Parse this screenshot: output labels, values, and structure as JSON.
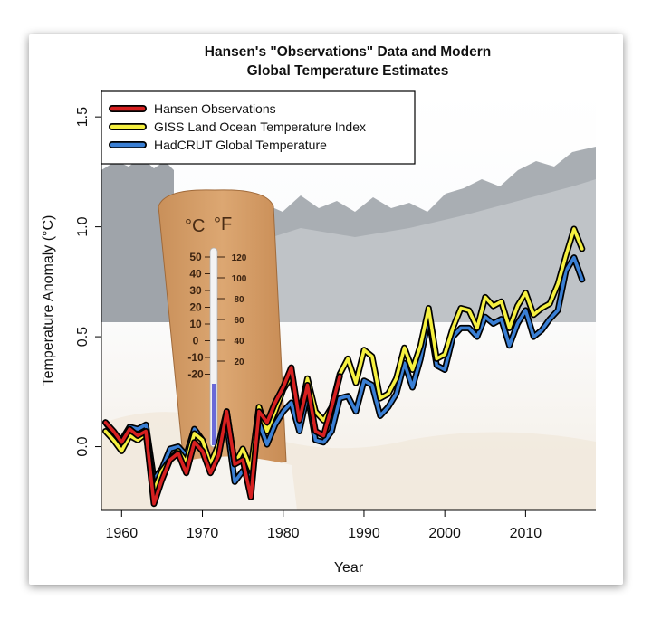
{
  "chart_data": {
    "type": "line",
    "title_line1": "Hansen's \"Observations\" Data and Modern",
    "title_line2": "Global Temperature Estimates",
    "xlabel": "Year",
    "ylabel": "Temperature Anomaly (°C)",
    "xlim": [
      1957.5,
      2018.7
    ],
    "ylim": [
      -0.29,
      1.62
    ],
    "xticks": [
      1960,
      1970,
      1980,
      1990,
      2000,
      2010
    ],
    "yticks": [
      0.0,
      0.5,
      1.0,
      1.5
    ],
    "ytick_labels": [
      "0.0",
      "0.5",
      "1.0",
      "1.5"
    ],
    "grid": false,
    "legend_position": "top-left",
    "series": [
      {
        "name": "Hansen Observations",
        "color": "#d62020",
        "x": [
          1958,
          1959,
          1960,
          1961,
          1962,
          1963,
          1964,
          1965,
          1966,
          1967,
          1968,
          1969,
          1970,
          1971,
          1972,
          1973,
          1974,
          1975,
          1976,
          1977,
          1978,
          1979,
          1980,
          1981,
          1982,
          1983,
          1984,
          1985,
          1986,
          1987
        ],
        "y": [
          0.11,
          0.07,
          0.02,
          0.08,
          0.05,
          0.07,
          -0.26,
          -0.15,
          -0.06,
          -0.03,
          -0.12,
          0.02,
          -0.02,
          -0.12,
          -0.04,
          0.16,
          -0.08,
          -0.06,
          -0.23,
          0.16,
          0.11,
          0.2,
          0.27,
          0.36,
          0.12,
          0.28,
          0.07,
          0.05,
          0.18,
          0.32
        ]
      },
      {
        "name": "GISS Land Ocean Temperature Index",
        "color": "#f5f040",
        "x": [
          1958,
          1959,
          1960,
          1961,
          1962,
          1963,
          1964,
          1965,
          1966,
          1967,
          1968,
          1969,
          1970,
          1971,
          1972,
          1973,
          1974,
          1975,
          1976,
          1977,
          1978,
          1979,
          1980,
          1981,
          1982,
          1983,
          1984,
          1985,
          1986,
          1987,
          1988,
          1989,
          1990,
          1991,
          1992,
          1993,
          1994,
          1995,
          1996,
          1997,
          1998,
          1999,
          2000,
          2001,
          2002,
          2003,
          2004,
          2005,
          2006,
          2007,
          2008,
          2009,
          2010,
          2011,
          2012,
          2013,
          2014,
          2015,
          2016,
          2017
        ],
        "y": [
          0.07,
          0.03,
          -0.02,
          0.05,
          0.03,
          0.06,
          -0.2,
          -0.11,
          -0.06,
          -0.02,
          -0.07,
          0.06,
          0.03,
          -0.08,
          0.01,
          0.16,
          -0.08,
          -0.01,
          -0.1,
          0.18,
          0.07,
          0.16,
          0.26,
          0.32,
          0.14,
          0.31,
          0.16,
          0.12,
          0.18,
          0.33,
          0.4,
          0.29,
          0.44,
          0.41,
          0.22,
          0.24,
          0.31,
          0.45,
          0.35,
          0.46,
          0.63,
          0.4,
          0.42,
          0.54,
          0.63,
          0.62,
          0.54,
          0.68,
          0.64,
          0.66,
          0.54,
          0.64,
          0.7,
          0.6,
          0.63,
          0.65,
          0.74,
          0.87,
          0.99,
          0.9
        ]
      },
      {
        "name": "HadCRUT Global Temperature",
        "color": "#3a7fd4",
        "x": [
          1958,
          1959,
          1960,
          1961,
          1962,
          1963,
          1964,
          1965,
          1966,
          1967,
          1968,
          1969,
          1970,
          1971,
          1972,
          1973,
          1974,
          1975,
          1976,
          1977,
          1978,
          1979,
          1980,
          1981,
          1982,
          1983,
          1984,
          1985,
          1986,
          1987,
          1988,
          1989,
          1990,
          1991,
          1992,
          1993,
          1994,
          1995,
          1996,
          1997,
          1998,
          1999,
          2000,
          2001,
          2002,
          2003,
          2004,
          2005,
          2006,
          2007,
          2008,
          2009,
          2010,
          2011,
          2012,
          2013,
          2014,
          2015,
          2016,
          2017
        ],
        "y": [
          0.11,
          0.06,
          0.03,
          0.09,
          0.08,
          0.1,
          -0.15,
          -0.1,
          -0.01,
          0.0,
          -0.04,
          0.08,
          0.03,
          -0.1,
          0.0,
          0.11,
          -0.16,
          -0.11,
          -0.14,
          0.11,
          0.01,
          0.1,
          0.16,
          0.2,
          0.07,
          0.24,
          0.03,
          0.02,
          0.07,
          0.22,
          0.23,
          0.16,
          0.3,
          0.28,
          0.14,
          0.18,
          0.24,
          0.38,
          0.27,
          0.4,
          0.59,
          0.37,
          0.35,
          0.5,
          0.54,
          0.54,
          0.5,
          0.59,
          0.56,
          0.58,
          0.46,
          0.56,
          0.62,
          0.5,
          0.53,
          0.58,
          0.62,
          0.8,
          0.86,
          0.76
        ]
      }
    ]
  },
  "photo": {
    "thermometer_unit_c": "°C",
    "thermometer_unit_f": "°F",
    "celsius_scale": [
      "50",
      "40",
      "30",
      "20",
      "10",
      "0",
      "-10",
      "-20"
    ],
    "fahrenheit_scale": [
      "120",
      "100",
      "80",
      "60",
      "40",
      "20"
    ]
  }
}
